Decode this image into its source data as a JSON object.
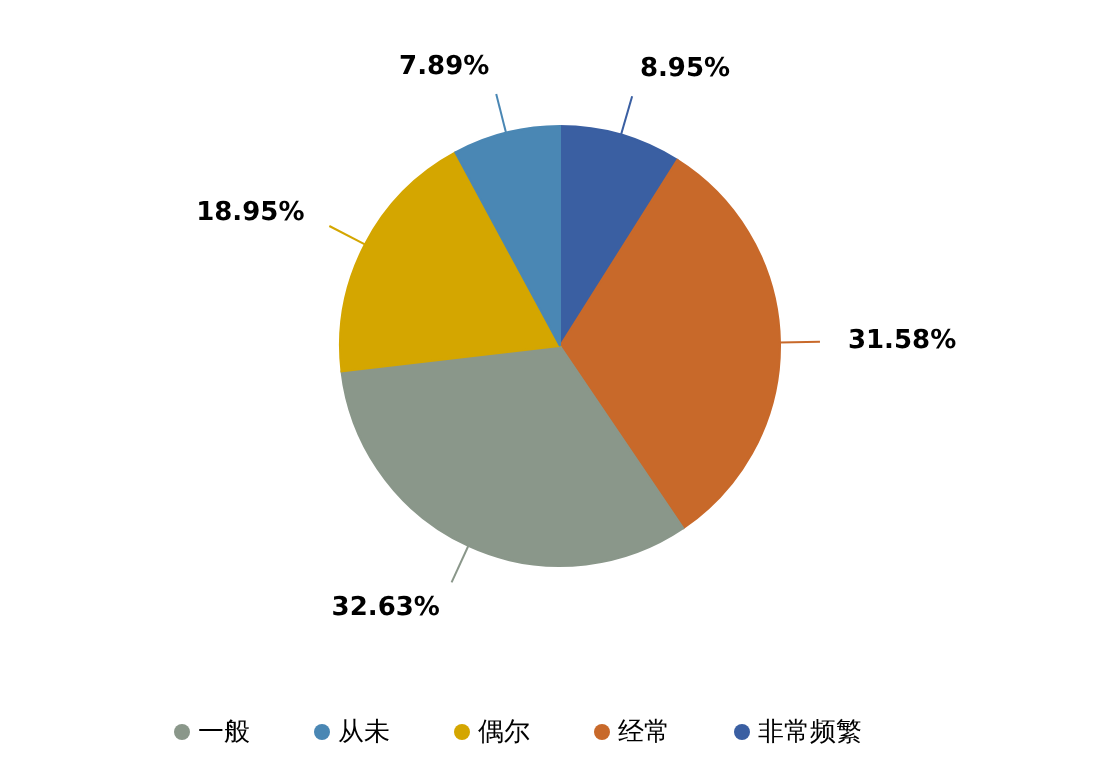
{
  "chart_data": {
    "type": "pie",
    "categories": [
      "非常频繁",
      "经常",
      "一般",
      "偶尔",
      "从未"
    ],
    "values": [
      8.95,
      31.58,
      32.63,
      18.95,
      7.89
    ],
    "colors": [
      "#3a5fa2",
      "#c8692a",
      "#8a978a",
      "#d4a600",
      "#4a87b4"
    ],
    "value_labels": [
      "8.95%",
      "31.58%",
      "32.63%",
      "18.95%",
      "7.89%"
    ],
    "legend": "bottom"
  }
}
